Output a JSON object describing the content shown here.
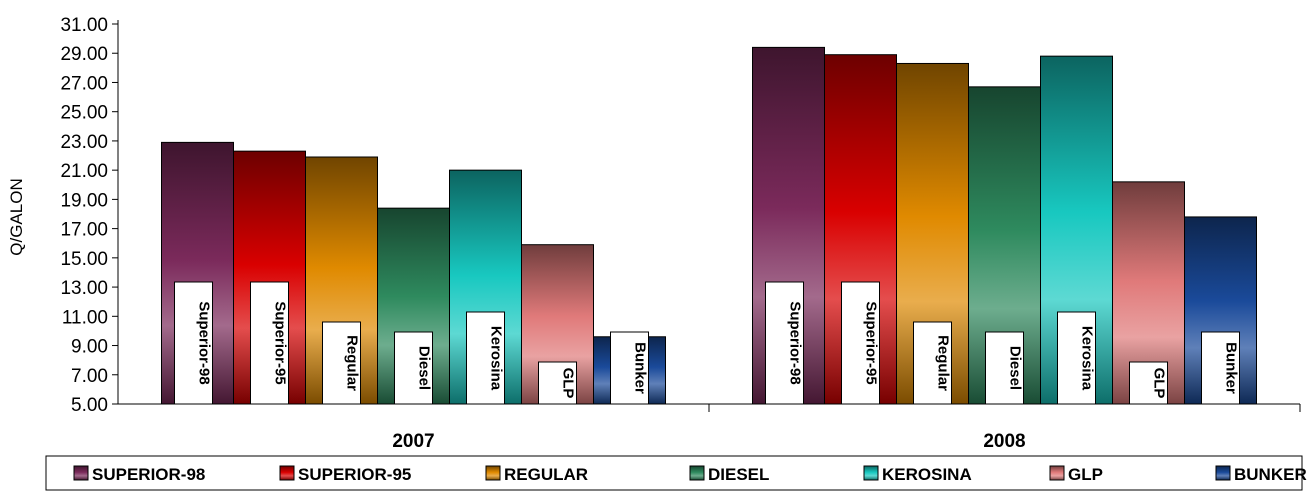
{
  "chart_data": {
    "type": "bar",
    "title": "",
    "xlabel": "",
    "ylabel": "Q/GALON",
    "ylim": [
      5,
      31
    ],
    "y_ticks": [
      "5.00",
      "7.00",
      "9.00",
      "11.00",
      "13.00",
      "15.00",
      "17.00",
      "19.00",
      "21.00",
      "23.00",
      "25.00",
      "27.00",
      "29.00",
      "31.00"
    ],
    "categories": [
      "2007",
      "2008"
    ],
    "grid": false,
    "legend_position": "bottom",
    "series": [
      {
        "name": "SUPERIOR-98",
        "label": "Superior-98",
        "color": "#7b2a5b",
        "values": [
          22.9,
          29.4
        ]
      },
      {
        "name": "SUPERIOR-95",
        "label": "Superior-95",
        "color": "#d90000",
        "values": [
          22.3,
          28.9
        ]
      },
      {
        "name": "REGULAR",
        "label": "Regular",
        "color": "#e08a00",
        "values": [
          21.9,
          28.3
        ]
      },
      {
        "name": "DIESEL",
        "label": "Diesel",
        "color": "#2e8a5e",
        "values": [
          18.4,
          26.7
        ]
      },
      {
        "name": "KEROSINA",
        "label": "Kerosina",
        "color": "#18c8c0",
        "values": [
          21.0,
          28.8
        ]
      },
      {
        "name": "GLP",
        "label": "GLP",
        "color": "#e07a7a",
        "values": [
          15.9,
          20.2
        ]
      },
      {
        "name": "BUNKER",
        "label": "Bunker",
        "color": "#1a4a9a",
        "values": [
          9.6,
          17.8
        ]
      }
    ]
  }
}
